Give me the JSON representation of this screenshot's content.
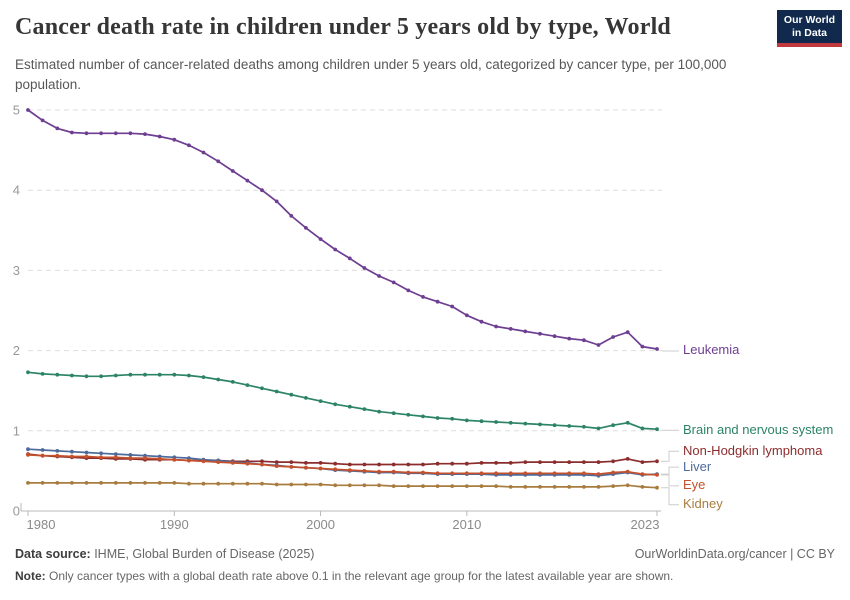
{
  "header": {
    "title": "Cancer death rate in children under 5 years old by type, World",
    "subtitle": "Estimated number of cancer-related deaths among children under 5 years old, categorized by cancer type, per 100,000 population.",
    "logo": {
      "line1": "Our World",
      "line2": "in Data",
      "bg_color": "#10294C",
      "accent_color": "#C0393E"
    }
  },
  "chart_data": {
    "type": "line",
    "title": "Cancer death rate in children under 5 years old by type, World",
    "xlabel": "",
    "ylabel": "",
    "ylim": [
      0,
      5
    ],
    "x_range": [
      1980,
      2023
    ],
    "x_ticks": [
      1980,
      1990,
      2000,
      2010,
      2023
    ],
    "y_ticks": [
      0,
      1,
      2,
      3,
      4,
      5
    ],
    "grid": "horizontal-dashed",
    "legend_position": "right-of-lines",
    "markers": "dots",
    "years": [
      1980,
      1981,
      1982,
      1983,
      1984,
      1985,
      1986,
      1987,
      1988,
      1989,
      1990,
      1991,
      1992,
      1993,
      1994,
      1995,
      1996,
      1997,
      1998,
      1999,
      2000,
      2001,
      2002,
      2003,
      2004,
      2005,
      2006,
      2007,
      2008,
      2009,
      2010,
      2011,
      2012,
      2013,
      2014,
      2015,
      2016,
      2017,
      2018,
      2019,
      2020,
      2021,
      2022,
      2023
    ],
    "series": [
      {
        "name": "Leukemia",
        "color": "#6D3E91",
        "values": [
          5.0,
          4.87,
          4.77,
          4.72,
          4.71,
          4.71,
          4.71,
          4.71,
          4.7,
          4.67,
          4.63,
          4.56,
          4.47,
          4.36,
          4.24,
          4.12,
          4.0,
          3.86,
          3.68,
          3.53,
          3.39,
          3.26,
          3.15,
          3.03,
          2.93,
          2.85,
          2.75,
          2.67,
          2.61,
          2.55,
          2.44,
          2.36,
          2.3,
          2.27,
          2.24,
          2.21,
          2.18,
          2.15,
          2.13,
          2.07,
          2.17,
          2.23,
          2.05,
          2.02
        ]
      },
      {
        "name": "Brain and nervous system",
        "color": "#2C8465",
        "values": [
          1.73,
          1.71,
          1.7,
          1.69,
          1.68,
          1.68,
          1.69,
          1.7,
          1.7,
          1.7,
          1.7,
          1.69,
          1.67,
          1.64,
          1.61,
          1.57,
          1.53,
          1.49,
          1.45,
          1.41,
          1.37,
          1.33,
          1.3,
          1.27,
          1.24,
          1.22,
          1.2,
          1.18,
          1.16,
          1.15,
          1.13,
          1.12,
          1.11,
          1.1,
          1.09,
          1.08,
          1.07,
          1.06,
          1.05,
          1.03,
          1.07,
          1.1,
          1.03,
          1.02
        ]
      },
      {
        "name": "Non-Hodgkin lymphoma",
        "color": "#8C2D2D",
        "values": [
          0.71,
          0.69,
          0.68,
          0.67,
          0.66,
          0.66,
          0.65,
          0.65,
          0.64,
          0.64,
          0.64,
          0.63,
          0.63,
          0.63,
          0.62,
          0.62,
          0.62,
          0.61,
          0.61,
          0.6,
          0.6,
          0.59,
          0.58,
          0.58,
          0.58,
          0.58,
          0.58,
          0.58,
          0.59,
          0.59,
          0.59,
          0.6,
          0.6,
          0.6,
          0.61,
          0.61,
          0.61,
          0.61,
          0.61,
          0.61,
          0.62,
          0.65,
          0.61,
          0.62
        ]
      },
      {
        "name": "Liver",
        "color": "#4C6A9C",
        "values": [
          0.77,
          0.76,
          0.75,
          0.74,
          0.73,
          0.72,
          0.71,
          0.7,
          0.69,
          0.68,
          0.67,
          0.66,
          0.64,
          0.63,
          0.61,
          0.6,
          0.58,
          0.57,
          0.55,
          0.54,
          0.53,
          0.51,
          0.5,
          0.49,
          0.48,
          0.48,
          0.47,
          0.47,
          0.46,
          0.46,
          0.46,
          0.46,
          0.45,
          0.45,
          0.45,
          0.45,
          0.45,
          0.45,
          0.45,
          0.44,
          0.46,
          0.48,
          0.45,
          0.46
        ]
      },
      {
        "name": "Eye",
        "color": "#C4512C",
        "values": [
          0.7,
          0.69,
          0.69,
          0.68,
          0.68,
          0.67,
          0.67,
          0.66,
          0.66,
          0.65,
          0.64,
          0.63,
          0.62,
          0.61,
          0.6,
          0.59,
          0.58,
          0.56,
          0.55,
          0.54,
          0.53,
          0.52,
          0.51,
          0.5,
          0.49,
          0.49,
          0.48,
          0.48,
          0.47,
          0.47,
          0.47,
          0.47,
          0.47,
          0.47,
          0.47,
          0.47,
          0.47,
          0.47,
          0.47,
          0.46,
          0.48,
          0.49,
          0.46,
          0.45
        ]
      },
      {
        "name": "Kidney",
        "color": "#A87C3E",
        "values": [
          0.35,
          0.35,
          0.35,
          0.35,
          0.35,
          0.35,
          0.35,
          0.35,
          0.35,
          0.35,
          0.35,
          0.34,
          0.34,
          0.34,
          0.34,
          0.34,
          0.34,
          0.33,
          0.33,
          0.33,
          0.33,
          0.32,
          0.32,
          0.32,
          0.32,
          0.31,
          0.31,
          0.31,
          0.31,
          0.31,
          0.31,
          0.31,
          0.31,
          0.3,
          0.3,
          0.3,
          0.3,
          0.3,
          0.3,
          0.3,
          0.31,
          0.32,
          0.3,
          0.29
        ]
      }
    ]
  },
  "footer": {
    "source_label": "Data source:",
    "source_text": " IHME, Global Burden of Disease (2025)",
    "rights": "OurWorldinData.org/cancer | CC BY",
    "note_label": "Note:",
    "note_text": " Only cancer types with a global death rate above 0.1 in the relevant age group for the latest available year are shown."
  }
}
